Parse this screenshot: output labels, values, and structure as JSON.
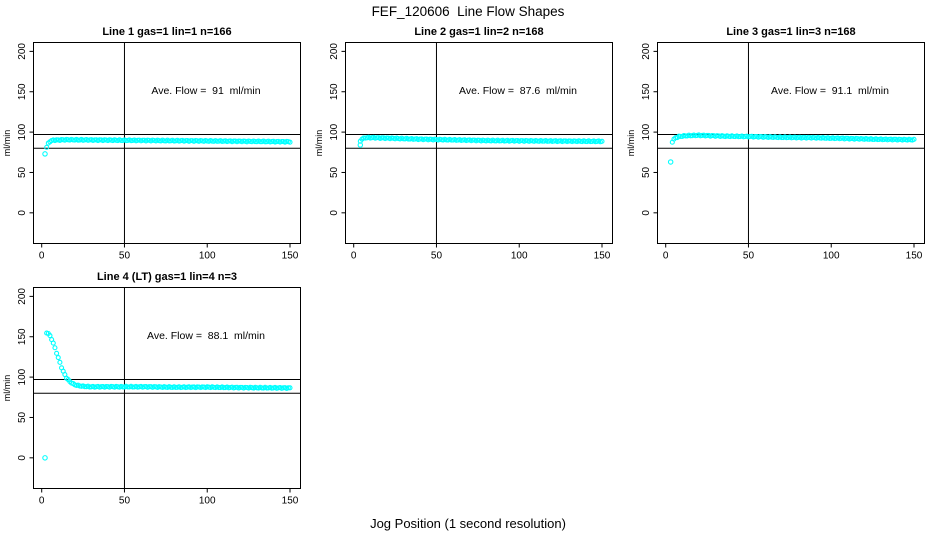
{
  "page": {
    "main_title": "FEF_120606  Line Flow Shapes",
    "bottom_axis_label": "Jog Position (1 second resolution)",
    "background_color": "#ffffff",
    "axis_color": "#000000"
  },
  "chart_data": {
    "type": "scatter",
    "title": "FEF_120606  Line Flow Shapes",
    "xlabel": "Jog Position (1 second resolution)",
    "ylabel": "ml/min",
    "xlim": [
      0,
      150
    ],
    "ylim": [
      0,
      200
    ],
    "x_ticks": [
      0,
      50,
      100,
      150
    ],
    "y_ticks": [
      0,
      50,
      100,
      150,
      200
    ],
    "grid": false,
    "reference_lines": {
      "horizontal": [
        80,
        97
      ],
      "vertical": [
        50
      ]
    },
    "marker": {
      "shape": "open-circle",
      "color": "#00FFFF"
    },
    "sample_step": 1,
    "layout": "2x3-grid-4-panels",
    "charts": [
      {
        "title": "Line 1 gas=1 lin=1 n=166",
        "n": 166,
        "ave_flow": 91,
        "ave_flow_label": "Ave. Flow =  91  ml/min",
        "isolated_points": [
          [
            2,
            73
          ]
        ],
        "profile_points": [
          [
            3,
            81
          ],
          [
            4,
            86
          ],
          [
            5,
            88.5
          ],
          [
            7,
            90
          ],
          [
            15,
            90.5
          ],
          [
            40,
            90
          ],
          [
            70,
            89.5
          ],
          [
            100,
            89
          ],
          [
            125,
            88.5
          ],
          [
            150,
            88
          ]
        ]
      },
      {
        "title": "Line 2 gas=1 lin=2 n=168",
        "n": 168,
        "ave_flow": 87.6,
        "ave_flow_label": "Ave. Flow =  87.6  ml/min",
        "isolated_points": [
          [
            4,
            84
          ]
        ],
        "profile_points": [
          [
            4,
            89
          ],
          [
            5,
            91.5
          ],
          [
            7,
            93
          ],
          [
            12,
            93
          ],
          [
            20,
            92.5
          ],
          [
            35,
            91.5
          ],
          [
            55,
            90.5
          ],
          [
            80,
            89.5
          ],
          [
            110,
            89
          ],
          [
            150,
            88.5
          ]
        ]
      },
      {
        "title": "Line 3 gas=1 lin=3 n=168",
        "n": 168,
        "ave_flow": 91.1,
        "ave_flow_label": "Ave. Flow =  91.1  ml/min",
        "isolated_points": [
          [
            3,
            63
          ]
        ],
        "profile_points": [
          [
            4,
            88
          ],
          [
            5,
            91
          ],
          [
            6,
            93
          ],
          [
            8,
            94.5
          ],
          [
            12,
            95.5
          ],
          [
            20,
            96
          ],
          [
            35,
            95
          ],
          [
            50,
            94.5
          ],
          [
            70,
            93.5
          ],
          [
            90,
            93
          ],
          [
            110,
            92
          ],
          [
            130,
            91
          ],
          [
            150,
            90.5
          ]
        ]
      },
      {
        "title": "Line 4 (LT) gas=1 lin=4 n=3",
        "n": 3,
        "ave_flow": 88.1,
        "ave_flow_label": "Ave. Flow =  88.1  ml/min",
        "isolated_points": [
          [
            2,
            0
          ]
        ],
        "profile_points": [
          [
            3,
            155
          ],
          [
            4,
            154
          ],
          [
            5,
            151
          ],
          [
            6,
            147
          ],
          [
            7,
            142
          ],
          [
            8,
            136
          ],
          [
            9,
            130
          ],
          [
            10,
            124
          ],
          [
            11,
            118
          ],
          [
            12,
            112
          ],
          [
            13,
            107
          ],
          [
            14,
            103
          ],
          [
            15,
            99
          ],
          [
            16,
            96.5
          ],
          [
            17,
            94.5
          ],
          [
            18,
            93
          ],
          [
            19,
            91.5
          ],
          [
            20,
            90.5
          ],
          [
            22,
            89.5
          ],
          [
            25,
            88.5
          ],
          [
            30,
            88
          ],
          [
            40,
            88
          ],
          [
            60,
            88
          ],
          [
            80,
            87.5
          ],
          [
            100,
            87.5
          ],
          [
            120,
            87
          ],
          [
            150,
            86.5
          ]
        ]
      }
    ]
  }
}
